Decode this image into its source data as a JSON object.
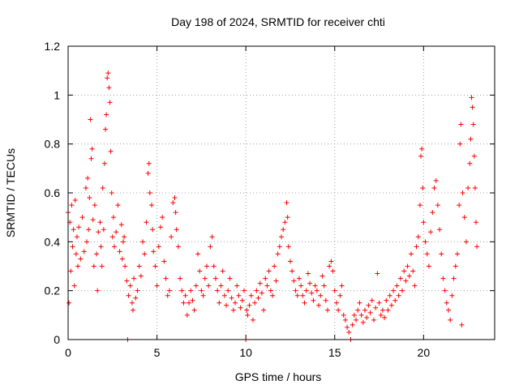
{
  "chart_data": {
    "type": "scatter",
    "title": "Day 198 of 2024, SRMTID for receiver chti",
    "xlabel": "GPS time / hours",
    "ylabel": "SRMTID / TECUs",
    "xlim": [
      0,
      24
    ],
    "ylim": [
      0,
      1.2
    ],
    "x_ticks": [
      0,
      5,
      10,
      15,
      20
    ],
    "x_tick_labels": [
      "0",
      "5",
      "10",
      "15",
      "20"
    ],
    "y_ticks": [
      0,
      0.2,
      0.4,
      0.6,
      0.8,
      1.0,
      1.2
    ],
    "y_tick_labels": [
      "0",
      "0.2",
      "0.4",
      "0.6",
      "0.8",
      "1",
      "1.2"
    ],
    "grid": true,
    "marker": "plus",
    "color": "#ff0000",
    "series": [
      {
        "name": "SRMTID",
        "points": [
          [
            0.0,
            0.52
          ],
          [
            0.05,
            0.15
          ],
          [
            0.1,
            0.48
          ],
          [
            0.15,
            0.28
          ],
          [
            0.2,
            0.55
          ],
          [
            0.25,
            0.38
          ],
          [
            0.3,
            0.45
          ],
          [
            0.35,
            0.22
          ],
          [
            0.4,
            0.57
          ],
          [
            0.45,
            0.35
          ],
          [
            0.5,
            0.42
          ],
          [
            0.55,
            0.3
          ],
          [
            0.6,
            0.46
          ],
          [
            0.7,
            0.33
          ],
          [
            0.8,
            0.5
          ],
          [
            0.9,
            0.36
          ],
          [
            1.0,
            0.62
          ],
          [
            1.05,
            0.4
          ],
          [
            1.1,
            0.66
          ],
          [
            1.15,
            0.45
          ],
          [
            1.2,
            0.58
          ],
          [
            1.25,
            0.9
          ],
          [
            1.3,
            0.74
          ],
          [
            1.35,
            0.78
          ],
          [
            1.4,
            0.49
          ],
          [
            1.45,
            0.3
          ],
          [
            1.5,
            0.55
          ],
          [
            1.6,
            0.35
          ],
          [
            1.65,
            0.2
          ],
          [
            1.7,
            0.44
          ],
          [
            1.8,
            0.48
          ],
          [
            1.85,
            0.38
          ],
          [
            1.9,
            0.3
          ],
          [
            1.95,
            0.62
          ],
          [
            2.0,
            0.45
          ],
          [
            2.05,
            0.72
          ],
          [
            2.1,
            0.86
          ],
          [
            2.15,
            0.92
          ],
          [
            2.2,
            1.07
          ],
          [
            2.25,
            1.09
          ],
          [
            2.3,
            1.03
          ],
          [
            2.35,
            0.97
          ],
          [
            2.4,
            0.77
          ],
          [
            2.45,
            0.6
          ],
          [
            2.5,
            0.42
          ],
          [
            2.55,
            0.5
          ],
          [
            2.6,
            0.38
          ],
          [
            2.7,
            0.44
          ],
          [
            2.8,
            0.55
          ],
          [
            2.9,
            0.36
          ],
          [
            3.0,
            0.47
          ],
          [
            3.05,
            0.33
          ],
          [
            3.1,
            0.4
          ],
          [
            3.15,
            0.42
          ],
          [
            3.2,
            0.3
          ],
          [
            3.3,
            0.24
          ],
          [
            3.35,
            0.0
          ],
          [
            3.4,
            0.18
          ],
          [
            3.5,
            0.22
          ],
          [
            3.6,
            0.15
          ],
          [
            3.65,
            0.12
          ],
          [
            3.7,
            0.25
          ],
          [
            3.8,
            0.17
          ],
          [
            3.9,
            0.2
          ],
          [
            4.0,
            0.3
          ],
          [
            4.1,
            0.26
          ],
          [
            4.2,
            0.4
          ],
          [
            4.3,
            0.35
          ],
          [
            4.4,
            0.48
          ],
          [
            4.5,
            0.68
          ],
          [
            4.55,
            0.72
          ],
          [
            4.6,
            0.6
          ],
          [
            4.7,
            0.55
          ],
          [
            4.75,
            0.45
          ],
          [
            4.8,
            0.36
          ],
          [
            4.9,
            0.3
          ],
          [
            5.0,
            0.22
          ],
          [
            5.1,
            0.38
          ],
          [
            5.2,
            0.46
          ],
          [
            5.3,
            0.5
          ],
          [
            5.4,
            0.32
          ],
          [
            5.5,
            0.25
          ],
          [
            5.6,
            0.18
          ],
          [
            5.7,
            0.2
          ],
          [
            5.8,
            0.42
          ],
          [
            5.9,
            0.56
          ],
          [
            6.0,
            0.58
          ],
          [
            6.05,
            0.52
          ],
          [
            6.1,
            0.45
          ],
          [
            6.2,
            0.38
          ],
          [
            6.3,
            0.25
          ],
          [
            6.4,
            0.2
          ],
          [
            6.5,
            0.15
          ],
          [
            6.6,
            0.18
          ],
          [
            6.7,
            0.1
          ],
          [
            6.8,
            0.15
          ],
          [
            6.9,
            0.2
          ],
          [
            7.0,
            0.16
          ],
          [
            7.1,
            0.12
          ],
          [
            7.2,
            0.22
          ],
          [
            7.3,
            0.35
          ],
          [
            7.4,
            0.28
          ],
          [
            7.5,
            0.2
          ],
          [
            7.6,
            0.18
          ],
          [
            7.7,
            0.25
          ],
          [
            7.8,
            0.3
          ],
          [
            7.9,
            0.22
          ],
          [
            8.0,
            0.38
          ],
          [
            8.1,
            0.42
          ],
          [
            8.2,
            0.3
          ],
          [
            8.3,
            0.25
          ],
          [
            8.4,
            0.2
          ],
          [
            8.5,
            0.15
          ],
          [
            8.6,
            0.22
          ],
          [
            8.7,
            0.28
          ],
          [
            8.8,
            0.18
          ],
          [
            8.9,
            0.14
          ],
          [
            9.0,
            0.2
          ],
          [
            9.1,
            0.25
          ],
          [
            9.2,
            0.17
          ],
          [
            9.3,
            0.12
          ],
          [
            9.4,
            0.15
          ],
          [
            9.5,
            0.22
          ],
          [
            9.6,
            0.18
          ],
          [
            9.7,
            0.13
          ],
          [
            9.8,
            0.16
          ],
          [
            9.9,
            0.2
          ],
          [
            10.0,
            0.0
          ],
          [
            10.05,
            0.12
          ],
          [
            10.1,
            0.1
          ],
          [
            10.2,
            0.14
          ],
          [
            10.3,
            0.18
          ],
          [
            10.4,
            0.08
          ],
          [
            10.5,
            0.15
          ],
          [
            10.6,
            0.2
          ],
          [
            10.7,
            0.17
          ],
          [
            10.8,
            0.23
          ],
          [
            10.9,
            0.19
          ],
          [
            11.0,
            0.12
          ],
          [
            11.1,
            0.25
          ],
          [
            11.2,
            0.22
          ],
          [
            11.3,
            0.28
          ],
          [
            11.4,
            0.2
          ],
          [
            11.5,
            0.18
          ],
          [
            11.6,
            0.3
          ],
          [
            11.7,
            0.24
          ],
          [
            11.8,
            0.35
          ],
          [
            11.9,
            0.38
          ],
          [
            12.0,
            0.42
          ],
          [
            12.1,
            0.45
          ],
          [
            12.2,
            0.48
          ],
          [
            12.3,
            0.56
          ],
          [
            12.35,
            0.5
          ],
          [
            12.4,
            0.38
          ],
          [
            12.5,
            0.32
          ],
          [
            12.6,
            0.28
          ],
          [
            12.7,
            0.24
          ],
          [
            12.8,
            0.2
          ],
          [
            12.9,
            0.18
          ],
          [
            13.0,
            0.25
          ],
          [
            13.1,
            0.22
          ],
          [
            13.2,
            0.18
          ],
          [
            13.3,
            0.15
          ],
          [
            13.4,
            0.2
          ],
          [
            13.5,
            0.27
          ],
          [
            13.6,
            0.23
          ],
          [
            13.7,
            0.19
          ],
          [
            13.8,
            0.16
          ],
          [
            13.9,
            0.22
          ],
          [
            14.0,
            0.2
          ],
          [
            14.1,
            0.14
          ],
          [
            14.2,
            0.18
          ],
          [
            14.3,
            0.26
          ],
          [
            14.4,
            0.22
          ],
          [
            14.5,
            0.16
          ],
          [
            14.6,
            0.12
          ],
          [
            14.7,
            0.3
          ],
          [
            14.8,
            0.32
          ],
          [
            14.9,
            0.28
          ],
          [
            15.0,
            0.2
          ],
          [
            15.1,
            0.15
          ],
          [
            15.2,
            0.12
          ],
          [
            15.3,
            0.18
          ],
          [
            15.4,
            0.22
          ],
          [
            15.5,
            0.1
          ],
          [
            15.6,
            0.08
          ],
          [
            15.7,
            0.05
          ],
          [
            15.8,
            0.03
          ],
          [
            15.9,
            0.0
          ],
          [
            16.0,
            0.06
          ],
          [
            16.1,
            0.1
          ],
          [
            16.2,
            0.08
          ],
          [
            16.3,
            0.12
          ],
          [
            16.4,
            0.15
          ],
          [
            16.5,
            0.1
          ],
          [
            16.6,
            0.07
          ],
          [
            16.7,
            0.12
          ],
          [
            16.8,
            0.09
          ],
          [
            16.9,
            0.14
          ],
          [
            17.0,
            0.11
          ],
          [
            17.1,
            0.16
          ],
          [
            17.2,
            0.08
          ],
          [
            17.3,
            0.13
          ],
          [
            17.4,
            0.27
          ],
          [
            17.5,
            0.15
          ],
          [
            17.6,
            0.1
          ],
          [
            17.7,
            0.12
          ],
          [
            17.8,
            0.09
          ],
          [
            17.9,
            0.16
          ],
          [
            18.0,
            0.12
          ],
          [
            18.1,
            0.18
          ],
          [
            18.2,
            0.14
          ],
          [
            18.3,
            0.2
          ],
          [
            18.4,
            0.16
          ],
          [
            18.5,
            0.22
          ],
          [
            18.6,
            0.18
          ],
          [
            18.7,
            0.25
          ],
          [
            18.8,
            0.2
          ],
          [
            18.9,
            0.28
          ],
          [
            19.0,
            0.24
          ],
          [
            19.1,
            0.3
          ],
          [
            19.2,
            0.26
          ],
          [
            19.3,
            0.35
          ],
          [
            19.4,
            0.28
          ],
          [
            19.5,
            0.22
          ],
          [
            19.6,
            0.38
          ],
          [
            19.7,
            0.42
          ],
          [
            19.8,
            0.55
          ],
          [
            19.85,
            0.75
          ],
          [
            19.9,
            0.78
          ],
          [
            19.95,
            0.62
          ],
          [
            20.0,
            0.48
          ],
          [
            20.1,
            0.4
          ],
          [
            20.2,
            0.35
          ],
          [
            20.3,
            0.3
          ],
          [
            20.4,
            0.44
          ],
          [
            20.5,
            0.52
          ],
          [
            20.6,
            0.62
          ],
          [
            20.7,
            0.65
          ],
          [
            20.8,
            0.55
          ],
          [
            20.9,
            0.45
          ],
          [
            21.0,
            0.35
          ],
          [
            21.1,
            0.25
          ],
          [
            21.2,
            0.2
          ],
          [
            21.3,
            0.15
          ],
          [
            21.4,
            0.12
          ],
          [
            21.5,
            0.08
          ],
          [
            21.6,
            0.18
          ],
          [
            21.7,
            0.25
          ],
          [
            21.8,
            0.3
          ],
          [
            21.9,
            0.35
          ],
          [
            22.0,
            0.55
          ],
          [
            22.05,
            0.8
          ],
          [
            22.1,
            0.88
          ],
          [
            22.15,
            0.06
          ],
          [
            22.2,
            0.6
          ],
          [
            22.3,
            0.5
          ],
          [
            22.4,
            0.4
          ],
          [
            22.5,
            0.62
          ],
          [
            22.6,
            0.72
          ],
          [
            22.65,
            0.82
          ],
          [
            22.7,
            0.99
          ],
          [
            22.75,
            0.95
          ],
          [
            22.8,
            0.88
          ],
          [
            22.85,
            0.75
          ],
          [
            22.9,
            0.62
          ],
          [
            22.95,
            0.48
          ],
          [
            23.0,
            0.38
          ]
        ]
      }
    ]
  }
}
